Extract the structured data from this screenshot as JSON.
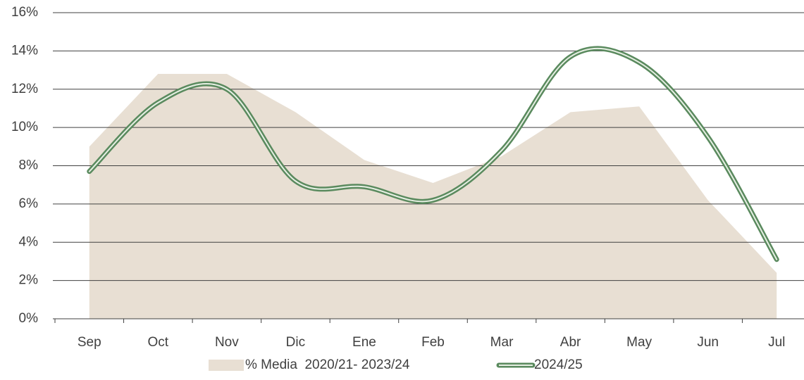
{
  "chart_data": {
    "type": "line",
    "categories": [
      "Sep",
      "Oct",
      "Nov",
      "Dic",
      "Ene",
      "Feb",
      "Mar",
      "Abr",
      "May",
      "Jun",
      "Jul"
    ],
    "series": [
      {
        "name": "% Media  2020/21- 2023/24",
        "type": "area",
        "color": "#e8dfd3",
        "values": [
          9.0,
          12.8,
          12.8,
          10.8,
          8.3,
          7.1,
          8.5,
          10.8,
          11.1,
          6.2,
          2.4
        ]
      },
      {
        "name": "2024/25",
        "type": "line",
        "color": "#5a8a5e",
        "smooth": true,
        "values": [
          7.7,
          11.3,
          12.0,
          7.2,
          6.9,
          6.2,
          8.8,
          13.7,
          13.4,
          9.5,
          3.1
        ]
      }
    ],
    "ylim": [
      0,
      16
    ],
    "yticks": [
      {
        "value": 0,
        "label": "0%"
      },
      {
        "value": 2,
        "label": "2%"
      },
      {
        "value": 4,
        "label": "4%"
      },
      {
        "value": 6,
        "label": "6%"
      },
      {
        "value": 8,
        "label": "8%"
      },
      {
        "value": 10,
        "label": "10%"
      },
      {
        "value": 12,
        "label": "12%"
      },
      {
        "value": 14,
        "label": "14%"
      },
      {
        "value": 16,
        "label": "16%"
      }
    ],
    "grid": true,
    "legend": "bottom"
  }
}
